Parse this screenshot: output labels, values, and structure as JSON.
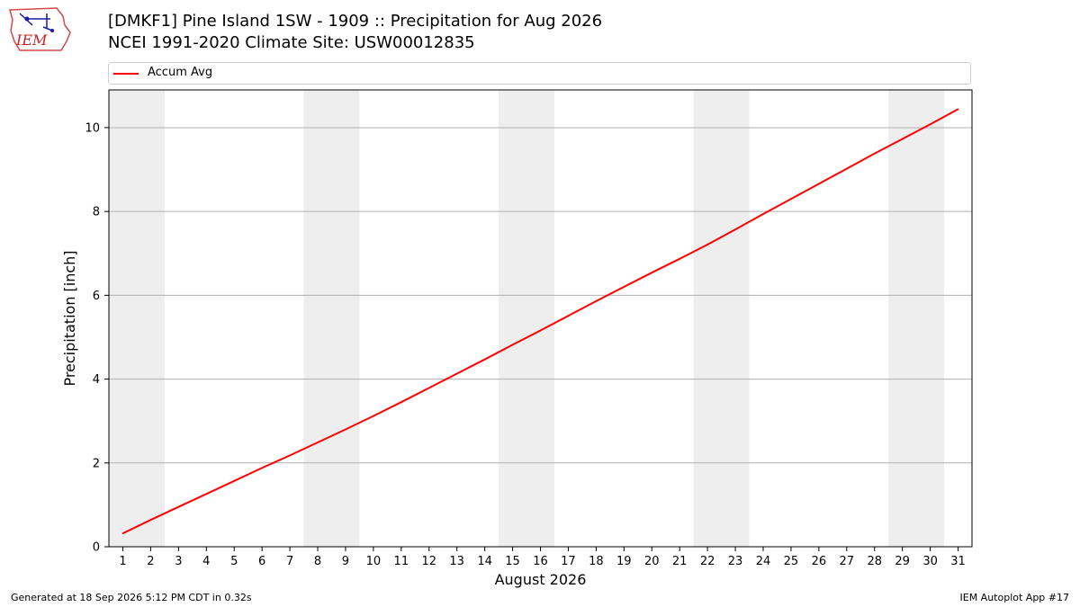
{
  "header": {
    "logo_text": "IEM",
    "title_line1": "[DMKF1] Pine Island 1SW - 1909 :: Precipitation for Aug 2026",
    "title_line2": "NCEI 1991-2020 Climate Site: USW00012835"
  },
  "legend": {
    "label": "Accum Avg",
    "color": "#ff0000"
  },
  "chart_data": {
    "type": "line",
    "title": "[DMKF1] Pine Island 1SW - 1909 :: Precipitation for Aug 2026",
    "subtitle": "NCEI 1991-2020 Climate Site: USW00012835",
    "xlabel": "August 2026",
    "ylabel": "Precipitation [inch]",
    "x": [
      1,
      2,
      3,
      4,
      5,
      6,
      7,
      8,
      9,
      10,
      11,
      12,
      13,
      14,
      15,
      16,
      17,
      18,
      19,
      20,
      21,
      22,
      23,
      24,
      25,
      26,
      27,
      28,
      29,
      30,
      31
    ],
    "xlim": [
      0.5,
      31.5
    ],
    "ylim": [
      0,
      10.9
    ],
    "yticks": [
      0,
      2,
      4,
      6,
      8,
      10
    ],
    "grid": "horizontal",
    "legend_position": "top, above plot",
    "weekend_shading": [
      [
        1,
        2
      ],
      [
        8,
        9
      ],
      [
        15,
        16
      ],
      [
        22,
        23
      ],
      [
        29,
        30
      ]
    ],
    "series": [
      {
        "name": "Accum Avg",
        "color": "#ff0000",
        "values": [
          0.32,
          0.64,
          0.95,
          1.26,
          1.57,
          1.88,
          2.18,
          2.49,
          2.8,
          3.12,
          3.45,
          3.79,
          4.13,
          4.47,
          4.82,
          5.16,
          5.51,
          5.86,
          6.2,
          6.54,
          6.87,
          7.21,
          7.57,
          7.94,
          8.3,
          8.66,
          9.02,
          9.38,
          9.73,
          10.08,
          10.44
        ]
      }
    ]
  },
  "footer": {
    "left": "Generated at 18 Sep 2026 5:12 PM CDT in 0.32s",
    "right": "IEM Autoplot App #17"
  }
}
